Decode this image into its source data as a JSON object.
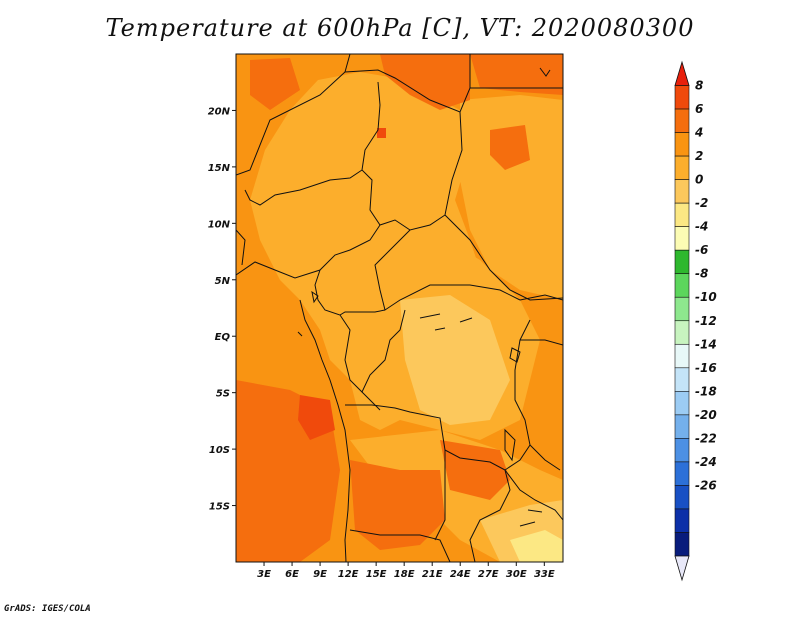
{
  "title": "Temperature at 600hPa [C], VT: 2020080300",
  "credit": "GrADS: IGES/COLA",
  "map": {
    "lon_range": [
      0,
      35
    ],
    "lat_range": [
      -20,
      25
    ],
    "x_ticks": [
      "3E",
      "6E",
      "9E",
      "12E",
      "15E",
      "18E",
      "21E",
      "24E",
      "27E",
      "30E",
      "33E"
    ],
    "y_ticks": [
      "20N",
      "15N",
      "10N",
      "5N",
      "EQ",
      "5S",
      "10S",
      "15S"
    ]
  },
  "colorbar": {
    "labels": [
      "8",
      "6",
      "4",
      "2",
      "0",
      "-2",
      "-4",
      "-6",
      "-8",
      "-10",
      "-12",
      "-14",
      "-16",
      "-18",
      "-20",
      "-22",
      "-24",
      "-26"
    ],
    "colors": [
      "#e8200c",
      "#f04a0c",
      "#f56e0e",
      "#f99412",
      "#fcae2c",
      "#fcc85c",
      "#fce884",
      "#fcfcb4",
      "#2eb82e",
      "#5cd65c",
      "#8ee88e",
      "#c8f4c0",
      "#e8f8f8",
      "#c4e4f8",
      "#9cccf4",
      "#74b0ec",
      "#4c90e4",
      "#2c70d8",
      "#1850c4",
      "#0c30a8",
      "#081c7c",
      "#e8e8f8"
    ]
  }
}
